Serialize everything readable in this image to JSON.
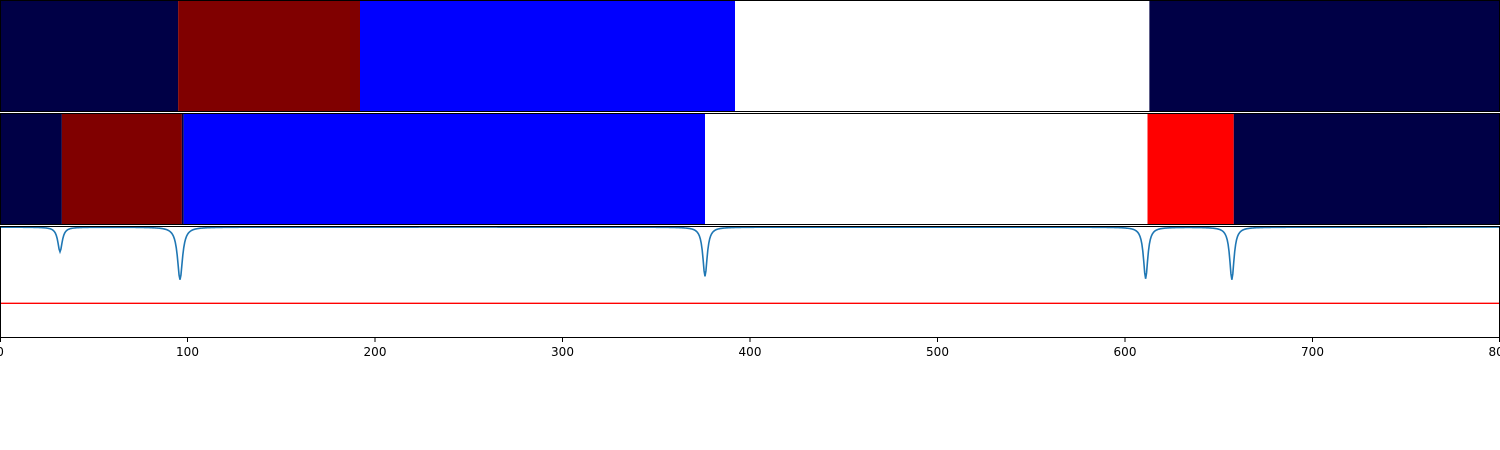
{
  "chart_data": {
    "type": "area",
    "xlim": [
      0,
      800
    ],
    "xticks": [
      0,
      100,
      200,
      300,
      400,
      500,
      600,
      700,
      800
    ],
    "grid": false,
    "legend": "none",
    "colors": {
      "navy": "#000046",
      "maroon": "#800000",
      "blue": "#0000ff",
      "white": "#ffffff",
      "red": "#ff0000",
      "curve": "#1f77b4",
      "threshold": "#ff0000"
    },
    "segment_rows": [
      {
        "segments": [
          {
            "start": 0,
            "end": 95,
            "color": "navy"
          },
          {
            "start": 95,
            "end": 192,
            "color": "maroon"
          },
          {
            "start": 192,
            "end": 392,
            "color": "blue"
          },
          {
            "start": 392,
            "end": 613,
            "color": "white"
          },
          {
            "start": 613,
            "end": 800,
            "color": "navy"
          }
        ]
      },
      {
        "segments": [
          {
            "start": 0,
            "end": 33,
            "color": "navy"
          },
          {
            "start": 33,
            "end": 97,
            "color": "maroon"
          },
          {
            "start": 97,
            "end": 98,
            "color": "navy"
          },
          {
            "start": 98,
            "end": 376,
            "color": "blue"
          },
          {
            "start": 376,
            "end": 612,
            "color": "white"
          },
          {
            "start": 612,
            "end": 658,
            "color": "red"
          },
          {
            "start": 658,
            "end": 800,
            "color": "navy"
          }
        ]
      }
    ],
    "signal": {
      "ylim": [
        0,
        1
      ],
      "baseline": 0.99,
      "threshold": 0.31,
      "dips": [
        {
          "x": 32,
          "min": 0.77,
          "width": 1.4
        },
        {
          "x": 96,
          "min": 0.52,
          "width": 1.6
        },
        {
          "x": 376,
          "min": 0.55,
          "width": 1.4
        },
        {
          "x": 611,
          "min": 0.53,
          "width": 1.4
        },
        {
          "x": 657,
          "min": 0.52,
          "width": 1.4
        }
      ]
    }
  }
}
